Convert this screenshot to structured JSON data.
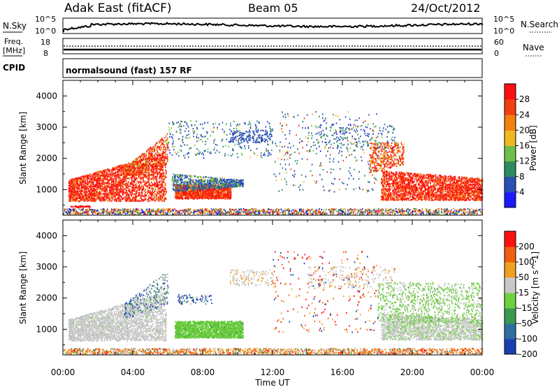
{
  "header": {
    "station": "Adak East (fitACF)",
    "beam": "Beam 05",
    "date": "24/Oct/2012"
  },
  "status_panels": {
    "nsky": {
      "label": "N.Sky",
      "tick_top": "10^5",
      "tick_bottom": "10^0"
    },
    "nsearch": {
      "label": "N.Search",
      "tick_top": "10^5",
      "tick_bottom": "10^0"
    },
    "freq": {
      "label_line1": "Freq.",
      "label_line2": "[MHz]",
      "tick_top": "18",
      "tick_bottom": "8"
    },
    "nave": {
      "label": "Nave",
      "tick_top": "60",
      "tick_bottom": "0"
    },
    "cpid": {
      "label": "CPID",
      "value": "normalsound (fast) 157 RF"
    }
  },
  "chart_data": [
    {
      "type": "heatmap",
      "title": "",
      "xlabel": "Time UT",
      "ylabel": "Slant Range [km]",
      "xlim": [
        "00:00",
        "24:00"
      ],
      "ylim": [
        180,
        4500
      ],
      "x_ticks": [
        "00:00",
        "04:00",
        "08:00",
        "12:00",
        "16:00",
        "20:00",
        "00:00"
      ],
      "y_ticks": [
        "1000",
        "2000",
        "3000",
        "4000"
      ],
      "colorbar": {
        "label": "Power [dB]",
        "ticks": [
          "4",
          "8",
          "12",
          "16",
          "20",
          "24",
          "28"
        ],
        "colors": [
          "#1a1aff",
          "#2a4fb5",
          "#2e8a60",
          "#6fbe4a",
          "#f0b820",
          "#f08010",
          "#f04010",
          "#ff1010"
        ]
      },
      "regions": [
        {
          "t": [
            0.3,
            5.9
          ],
          "r": [
            600,
            1500
          ],
          "level": 28,
          "note": "dense"
        },
        {
          "t": [
            6.4,
            9.6
          ],
          "r": [
            750,
            1250
          ],
          "level": 24,
          "note": "dense"
        },
        {
          "t": [
            18.2,
            24.0
          ],
          "r": [
            620,
            1500
          ],
          "level": 28,
          "note": "dense"
        },
        {
          "t": [
            6.0,
            12.0
          ],
          "r": [
            2000,
            3200
          ],
          "level": 8,
          "note": "sparse"
        },
        {
          "t": [
            14.0,
            19.0
          ],
          "r": [
            2200,
            3100
          ],
          "level": 8,
          "note": "sparse"
        }
      ]
    },
    {
      "type": "heatmap",
      "title": "",
      "xlabel": "Time UT",
      "ylabel": "Slant Range [km]",
      "xlim": [
        "00:00",
        "24:00"
      ],
      "ylim": [
        180,
        4500
      ],
      "x_ticks": [
        "00:00",
        "04:00",
        "08:00",
        "12:00",
        "16:00",
        "20:00",
        "00:00"
      ],
      "y_ticks": [
        "1000",
        "2000",
        "3000",
        "4000"
      ],
      "colorbar": {
        "label": "Velocity [m s^-1]",
        "ticks": [
          "200",
          "100",
          "50",
          "15",
          "-15",
          "-50",
          "-100",
          "-200"
        ],
        "colors": [
          "#1a3fb0",
          "#2e6fa0",
          "#3a9a50",
          "#6fd040",
          "#c8c8c8",
          "#f0a020",
          "#f06010",
          "#ff1010"
        ]
      },
      "regions": [
        {
          "t": [
            0.3,
            5.9
          ],
          "r": [
            600,
            1600
          ],
          "level": 0,
          "note": "ground scatter"
        },
        {
          "t": [
            6.4,
            10.3
          ],
          "r": [
            700,
            1250
          ],
          "level": 30,
          "note": "dense"
        },
        {
          "t": [
            18.2,
            24.0
          ],
          "r": [
            620,
            1500
          ],
          "level": 0,
          "note": "ground scatter"
        },
        {
          "t": [
            18.0,
            24.0
          ],
          "r": [
            700,
            2500
          ],
          "level": 30,
          "note": "mixed"
        }
      ]
    }
  ]
}
